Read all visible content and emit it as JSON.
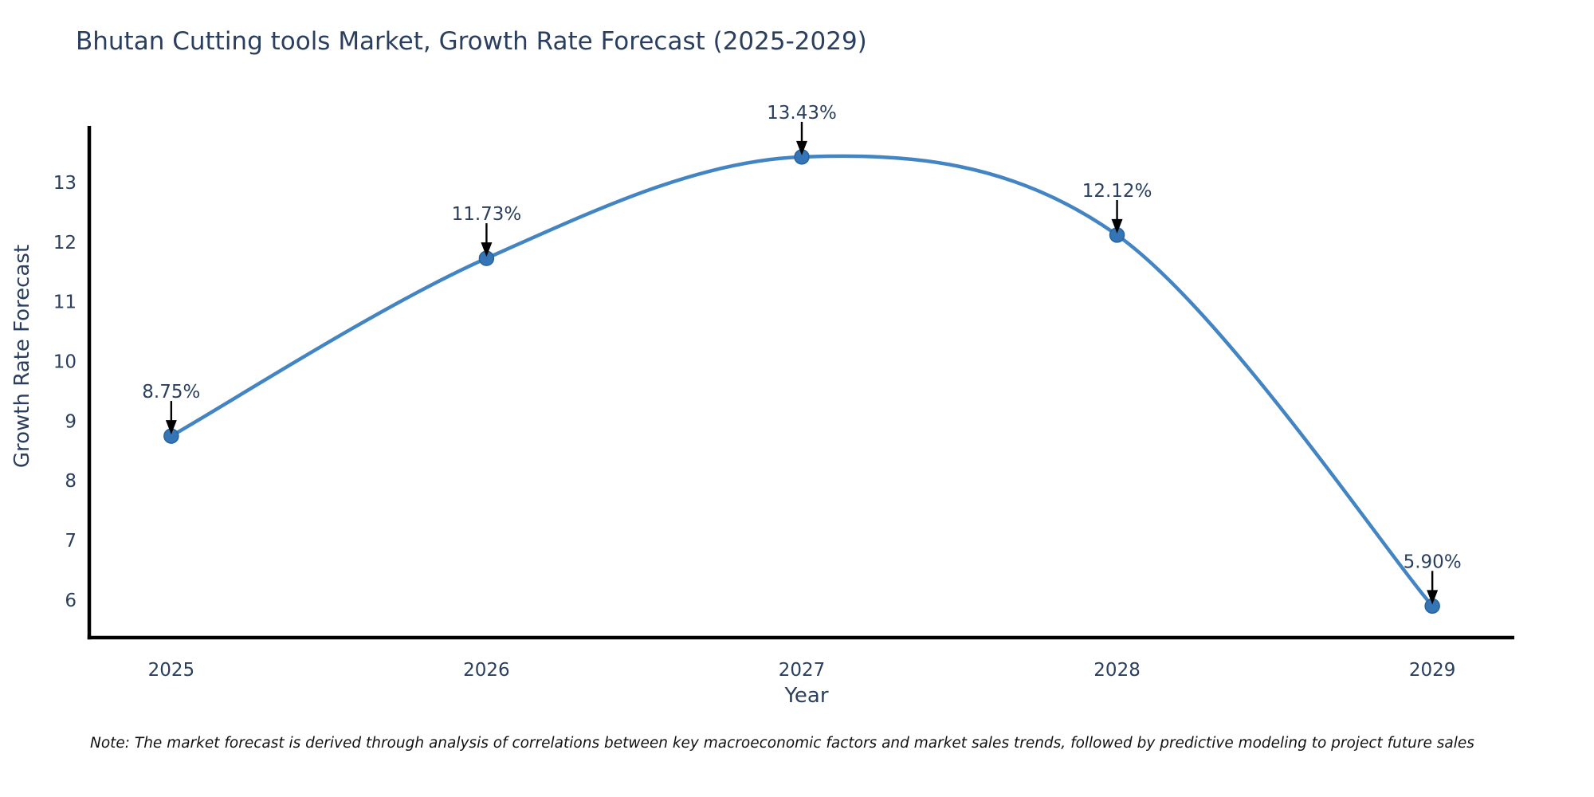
{
  "chart_data": {
    "type": "line",
    "title": "Bhutan Cutting tools Market, Growth Rate Forecast (2025-2029)",
    "xlabel": "Year",
    "ylabel": "Growth Rate Forecast",
    "x": [
      2025,
      2026,
      2027,
      2028,
      2029
    ],
    "series": [
      {
        "name": "Growth Rate Forecast",
        "values": [
          8.75,
          11.73,
          13.43,
          12.12,
          5.9
        ],
        "point_labels": [
          "8.75%",
          "11.73%",
          "13.43%",
          "12.12%",
          "5.90%"
        ]
      }
    ],
    "yticks": [
      6,
      7,
      8,
      9,
      10,
      11,
      12,
      13
    ],
    "ylim": [
      5.37,
      13.95
    ],
    "xlim": [
      2024.74,
      2029.26
    ],
    "grid": false,
    "legend": "none",
    "line_shape": "spline",
    "annotations_have_arrows": true,
    "colors": {
      "line": "#4384c2",
      "marker": "#3375b6",
      "marker_edge": "#2a6399",
      "axis": "#000000",
      "tick_text": "#2a3f5f",
      "title_text": "#2a3f5f",
      "annotation_text": "#2a3f5f",
      "arrow": "#000000",
      "note_text": "#111111",
      "background": "#ffffff"
    },
    "note": "Note: The market forecast is derived through analysis of correlations between key macroeconomic factors and market sales trends, followed by predictive modeling to project future sales"
  }
}
